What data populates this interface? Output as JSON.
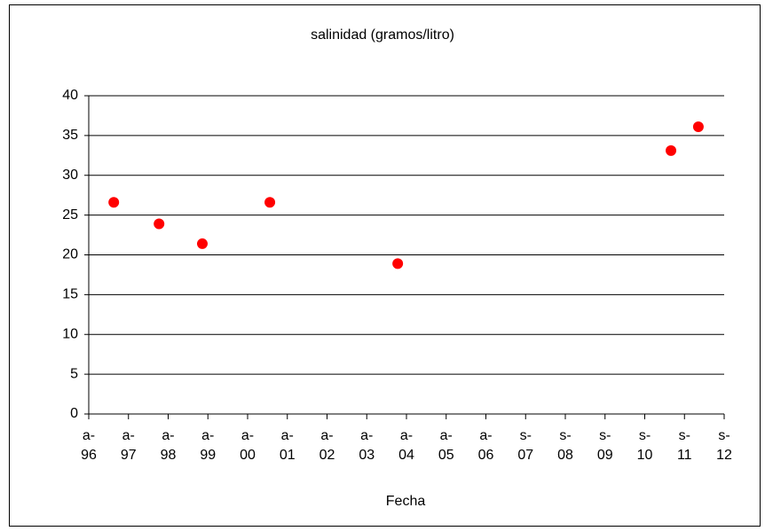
{
  "chart_data": {
    "type": "scatter",
    "title": "salinidad (gramos/litro)",
    "x_label": "Fecha",
    "series": [
      {
        "name": "salinidad",
        "color": "#ff0000",
        "x": [
          1997.23,
          1998.37,
          1999.46,
          2001.16,
          2004.38,
          2011.26,
          2011.95
        ],
        "values": [
          26.6,
          23.9,
          21.4,
          26.6,
          18.9,
          33.1,
          36.1
        ]
      }
    ],
    "xlim": [
      1996.6,
      2012.6
    ],
    "xticks": [
      {
        "value": 1996.6,
        "label": "a-\n96"
      },
      {
        "value": 1997.6,
        "label": "a-\n97"
      },
      {
        "value": 1998.6,
        "label": "a-\n98"
      },
      {
        "value": 1999.6,
        "label": "a-\n99"
      },
      {
        "value": 2000.6,
        "label": "a-\n00"
      },
      {
        "value": 2001.6,
        "label": "a-\n01"
      },
      {
        "value": 2002.6,
        "label": "a-\n02"
      },
      {
        "value": 2003.6,
        "label": "a-\n03"
      },
      {
        "value": 2004.6,
        "label": "a-\n04"
      },
      {
        "value": 2005.6,
        "label": "a-\n05"
      },
      {
        "value": 2006.6,
        "label": "a-\n06"
      },
      {
        "value": 2007.6,
        "label": "s-\n07"
      },
      {
        "value": 2008.6,
        "label": "s-\n08"
      },
      {
        "value": 2009.6,
        "label": "s-\n09"
      },
      {
        "value": 2010.6,
        "label": "s-\n10"
      },
      {
        "value": 2011.6,
        "label": "s-\n11"
      },
      {
        "value": 2012.6,
        "label": "s-\n12"
      }
    ],
    "ylim": [
      0,
      40
    ],
    "yticks": [
      0,
      5,
      10,
      15,
      20,
      25,
      30,
      35,
      40
    ],
    "grid": true
  }
}
